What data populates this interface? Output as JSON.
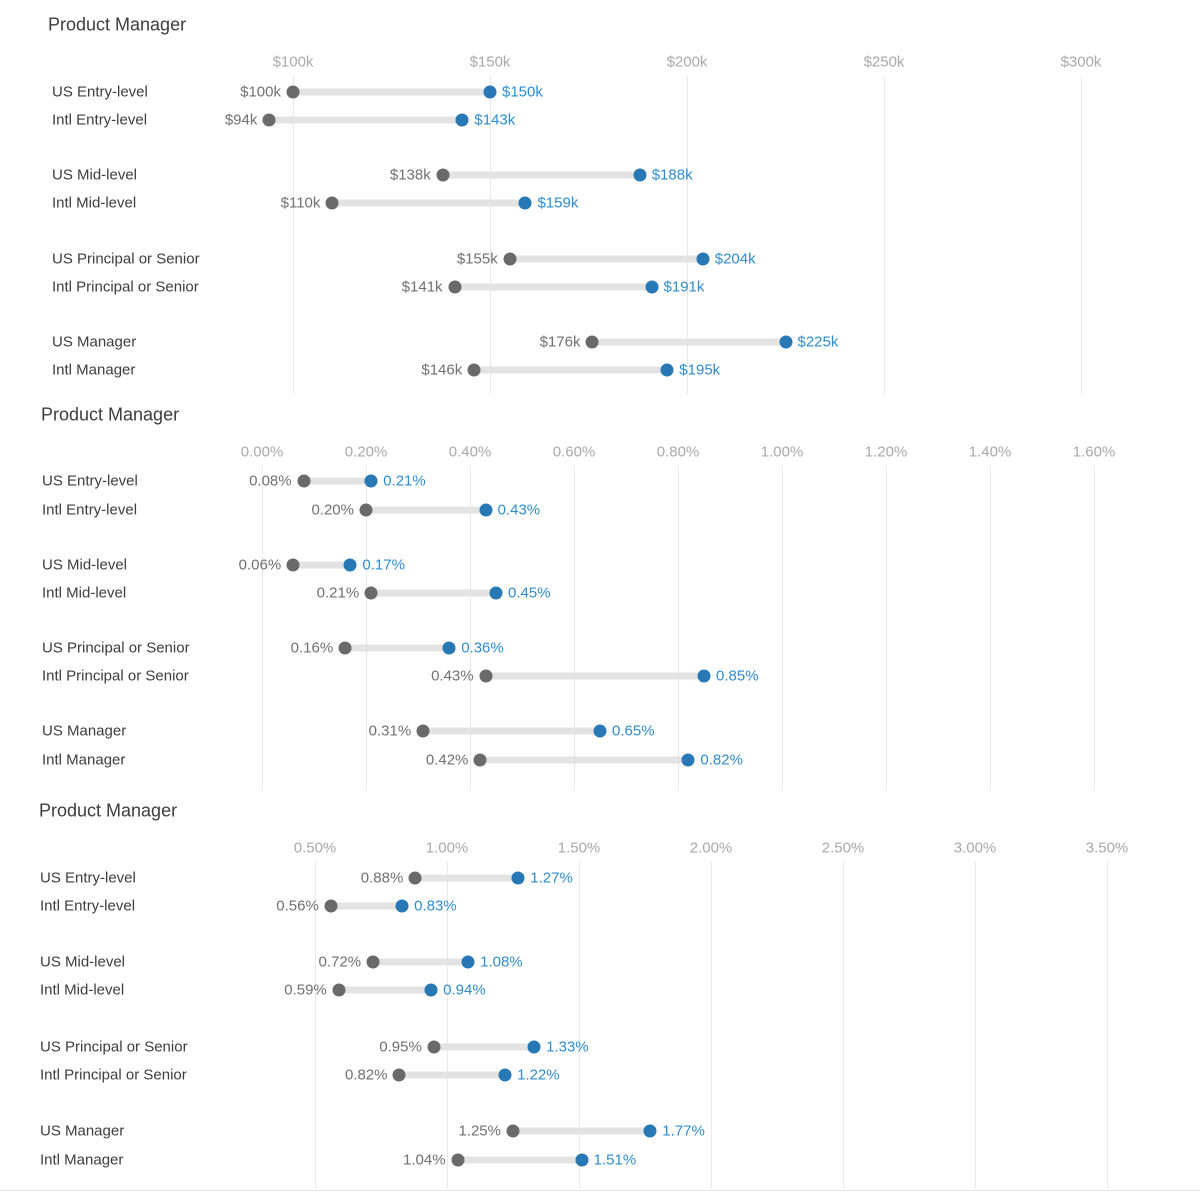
{
  "page": {
    "background": "#ffffff"
  },
  "colors": {
    "title_text": "#3d3d3d",
    "category_text": "#3d3d3d",
    "axis_tick_text": "#a9a9a9",
    "start_dot": "#6a6a6a",
    "start_value_text": "#707070",
    "end_dot": "#2778b5",
    "end_value_text": "#2e8ccd",
    "range_bar": "#e3e3e3",
    "gridline": "#e9e9e9",
    "divider": "#e5e5e5"
  },
  "chart_data": [
    {
      "type": "dumbbell",
      "title": "Product Manager",
      "legend": "none",
      "grid": "vertical",
      "x_axis": {
        "tick_labels": [
          "$100k",
          "$150k",
          "$200k",
          "$250k",
          "$300k"
        ],
        "tick_values": [
          100,
          150,
          200,
          250,
          300
        ],
        "range": [
          100,
          300
        ]
      },
      "rows": [
        {
          "category": "US Entry-level",
          "start_value": 100,
          "start_label": "$100k",
          "end_value": 150,
          "end_label": "$150k"
        },
        {
          "category": "Intl Entry-level",
          "start_value": 94,
          "start_label": "$94k",
          "end_value": 143,
          "end_label": "$143k"
        },
        {
          "category": "US Mid-level",
          "start_value": 138,
          "start_label": "$138k",
          "end_value": 188,
          "end_label": "$188k"
        },
        {
          "category": "Intl Mid-level",
          "start_value": 110,
          "start_label": "$110k",
          "end_value": 159,
          "end_label": "$159k"
        },
        {
          "category": "US Principal or Senior",
          "start_value": 155,
          "start_label": "$155k",
          "end_value": 204,
          "end_label": "$204k"
        },
        {
          "category": "Intl Principal or Senior",
          "start_value": 141,
          "start_label": "$141k",
          "end_value": 191,
          "end_label": "$191k"
        },
        {
          "category": "US Manager",
          "start_value": 176,
          "start_label": "$176k",
          "end_value": 225,
          "end_label": "$225k"
        },
        {
          "category": "Intl Manager",
          "start_value": 146,
          "start_label": "$146k",
          "end_value": 195,
          "end_label": "$195k"
        }
      ]
    },
    {
      "type": "dumbbell",
      "title": "Product Manager",
      "legend": "none",
      "grid": "vertical",
      "x_axis": {
        "tick_labels": [
          "0.00%",
          "0.20%",
          "0.40%",
          "0.60%",
          "0.80%",
          "1.00%",
          "1.20%",
          "1.40%",
          "1.60%"
        ],
        "tick_values": [
          0,
          0.2,
          0.4,
          0.6,
          0.8,
          1.0,
          1.2,
          1.4,
          1.6
        ],
        "range": [
          0,
          1.6
        ]
      },
      "rows": [
        {
          "category": "US Entry-level",
          "start_value": 0.08,
          "start_label": "0.08%",
          "end_value": 0.21,
          "end_label": "0.21%"
        },
        {
          "category": "Intl Entry-level",
          "start_value": 0.2,
          "start_label": "0.20%",
          "end_value": 0.43,
          "end_label": "0.43%"
        },
        {
          "category": "US Mid-level",
          "start_value": 0.06,
          "start_label": "0.06%",
          "end_value": 0.17,
          "end_label": "0.17%"
        },
        {
          "category": "Intl Mid-level",
          "start_value": 0.21,
          "start_label": "0.21%",
          "end_value": 0.45,
          "end_label": "0.45%"
        },
        {
          "category": "US Principal or Senior",
          "start_value": 0.16,
          "start_label": "0.16%",
          "end_value": 0.36,
          "end_label": "0.36%"
        },
        {
          "category": "Intl Principal or Senior",
          "start_value": 0.43,
          "start_label": "0.43%",
          "end_value": 0.85,
          "end_label": "0.85%"
        },
        {
          "category": "US Manager",
          "start_value": 0.31,
          "start_label": "0.31%",
          "end_value": 0.65,
          "end_label": "0.65%"
        },
        {
          "category": "Intl Manager",
          "start_value": 0.42,
          "start_label": "0.42%",
          "end_value": 0.82,
          "end_label": "0.82%"
        }
      ]
    },
    {
      "type": "dumbbell",
      "title": "Product Manager",
      "legend": "none",
      "grid": "vertical",
      "x_axis": {
        "tick_labels": [
          "0.50%",
          "1.00%",
          "1.50%",
          "2.00%",
          "2.50%",
          "3.00%",
          "3.50%"
        ],
        "tick_values": [
          0.5,
          1.0,
          1.5,
          2.0,
          2.5,
          3.0,
          3.5
        ],
        "range": [
          0.5,
          3.5
        ]
      },
      "rows": [
        {
          "category": "US Entry-level",
          "start_value": 0.88,
          "start_label": "0.88%",
          "end_value": 1.27,
          "end_label": "1.27%"
        },
        {
          "category": "Intl Entry-level",
          "start_value": 0.56,
          "start_label": "0.56%",
          "end_value": 0.83,
          "end_label": "0.83%"
        },
        {
          "category": "US Mid-level",
          "start_value": 0.72,
          "start_label": "0.72%",
          "end_value": 1.08,
          "end_label": "1.08%"
        },
        {
          "category": "Intl Mid-level",
          "start_value": 0.59,
          "start_label": "0.59%",
          "end_value": 0.94,
          "end_label": "0.94%"
        },
        {
          "category": "US Principal or Senior",
          "start_value": 0.95,
          "start_label": "0.95%",
          "end_value": 1.33,
          "end_label": "1.33%"
        },
        {
          "category": "Intl Principal or Senior",
          "start_value": 0.82,
          "start_label": "0.82%",
          "end_value": 1.22,
          "end_label": "1.22%"
        },
        {
          "category": "US Manager",
          "start_value": 1.25,
          "start_label": "1.25%",
          "end_value": 1.77,
          "end_label": "1.77%"
        },
        {
          "category": "Intl Manager",
          "start_value": 1.04,
          "start_label": "1.04%",
          "end_value": 1.51,
          "end_label": "1.51%"
        }
      ]
    }
  ]
}
